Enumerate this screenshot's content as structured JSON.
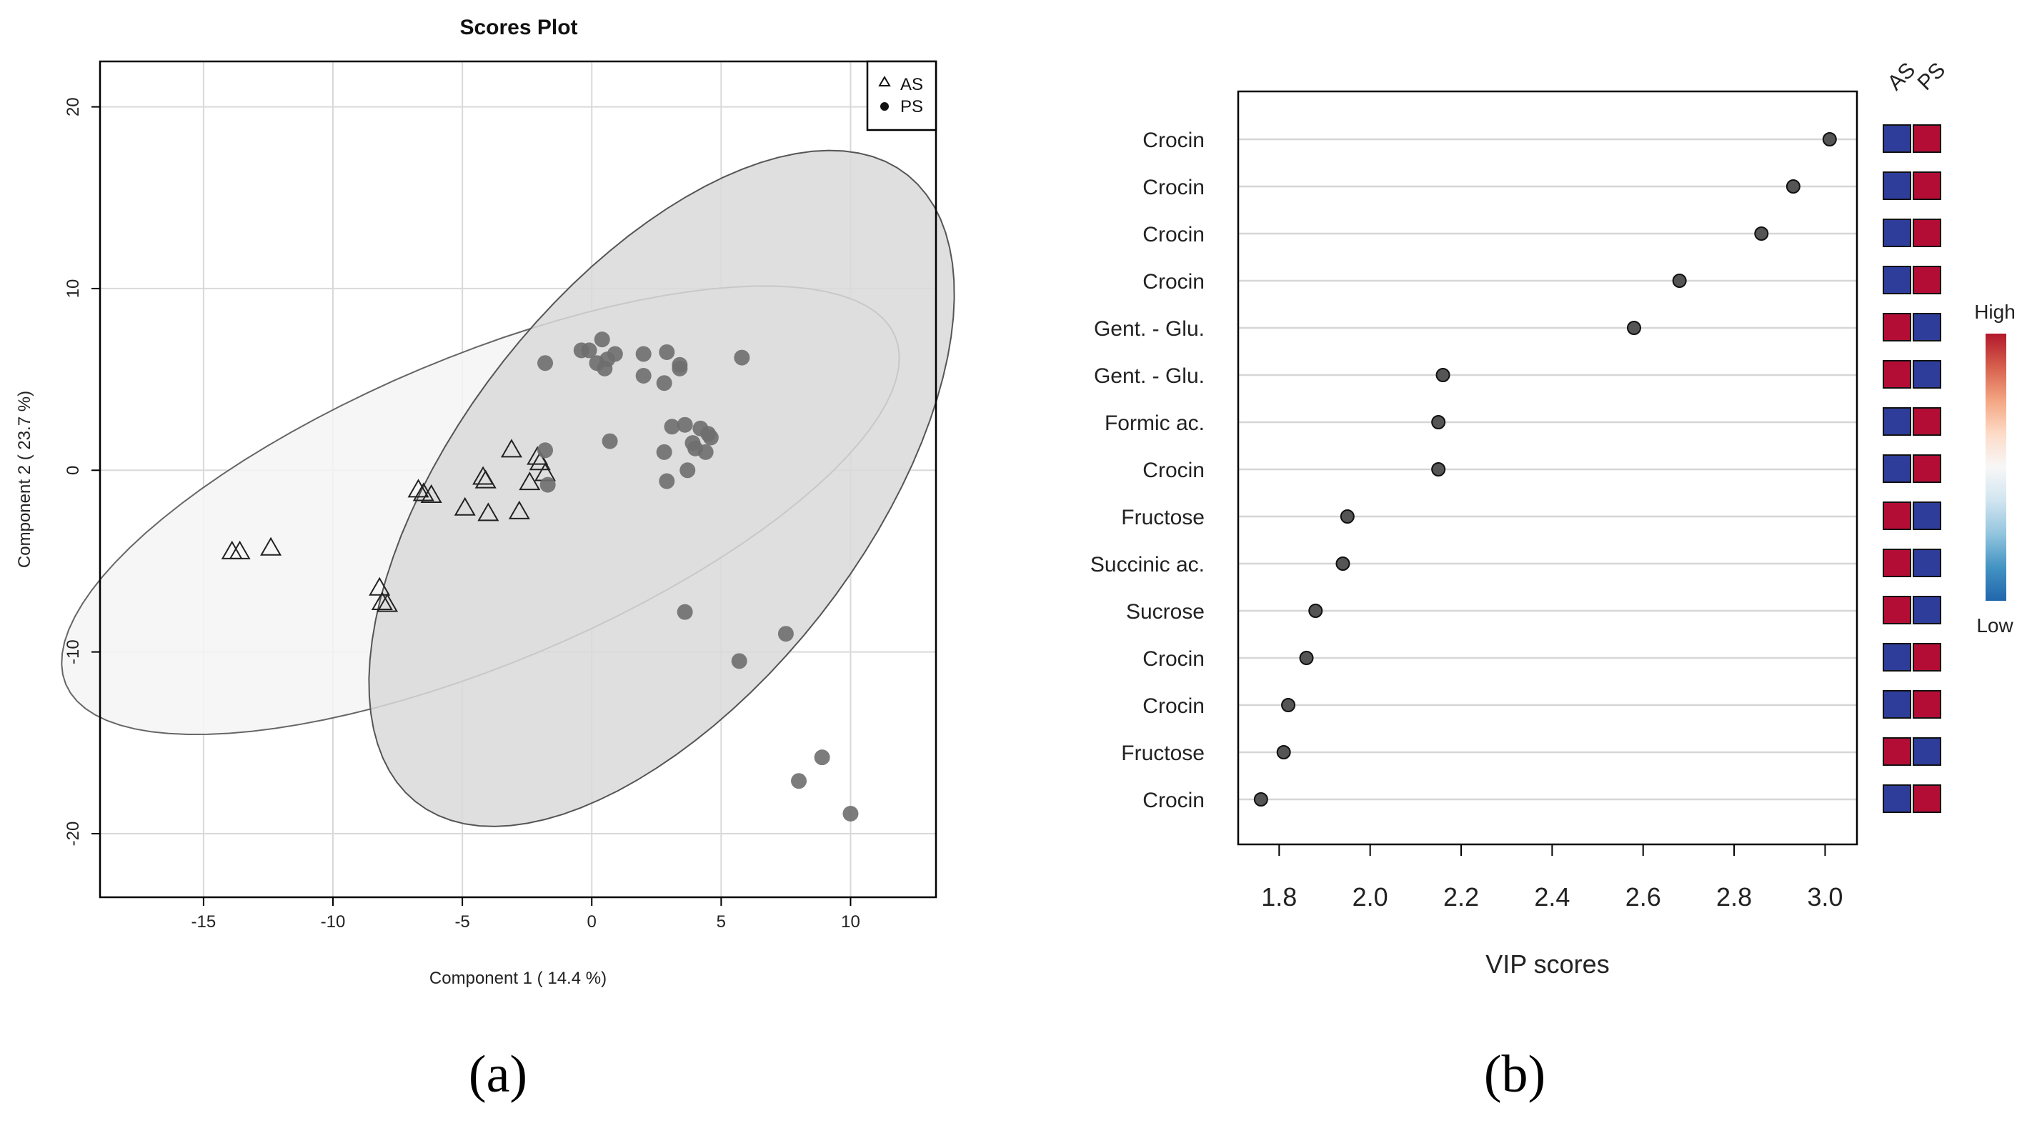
{
  "panels": {
    "a_label": "(a)",
    "b_label": "(b)"
  },
  "chart_data": [
    {
      "type": "scatter",
      "title": "Scores Plot",
      "xlabel": "Component 1 ( 14.4 %)",
      "ylabel": "Component 2 ( 23.7 %)",
      "xlim": [
        -19,
        13.3
      ],
      "ylim": [
        -23.5,
        22.5
      ],
      "xticks": [
        -15,
        -10,
        -5,
        0,
        5,
        10
      ],
      "yticks": [
        -20,
        -10,
        0,
        10,
        20
      ],
      "legend": {
        "position": "top-right",
        "entries": [
          "AS",
          "PS"
        ]
      },
      "ellipses": [
        {
          "group": "AS",
          "center": [
            -4.3,
            -2.2
          ],
          "semi_major": 18.8,
          "semi_minor": 7.8,
          "angle_deg": 34,
          "fill": "#f5f5f5",
          "stroke": "#666666"
        },
        {
          "group": "PS",
          "center": [
            2.7,
            -1.0
          ],
          "semi_major": 20.0,
          "semi_minor": 8.6,
          "angle_deg": 66,
          "fill": "#d9d9d9",
          "stroke": "#555555"
        }
      ],
      "series": [
        {
          "name": "AS",
          "marker": "triangle-open",
          "points": [
            [
              -13.9,
              -4.5
            ],
            [
              -13.6,
              -4.5
            ],
            [
              -12.4,
              -4.3
            ],
            [
              -8.2,
              -6.5
            ],
            [
              -8.1,
              -7.3
            ],
            [
              -7.9,
              -7.4
            ],
            [
              -6.7,
              -1.1
            ],
            [
              -6.5,
              -1.3
            ],
            [
              -6.2,
              -1.4
            ],
            [
              -4.9,
              -2.1
            ],
            [
              -4.2,
              -0.4
            ],
            [
              -4.1,
              -0.6
            ],
            [
              -4.0,
              -2.4
            ],
            [
              -3.1,
              1.1
            ],
            [
              -2.8,
              -2.3
            ],
            [
              -2.4,
              -0.7
            ],
            [
              -2.1,
              0.7
            ],
            [
              -2.0,
              0.4
            ],
            [
              -1.8,
              -0.2
            ]
          ]
        },
        {
          "name": "PS",
          "marker": "circle-filled",
          "points": [
            [
              -1.8,
              5.9
            ],
            [
              -0.4,
              6.6
            ],
            [
              -0.1,
              6.6
            ],
            [
              0.2,
              5.9
            ],
            [
              0.4,
              7.2
            ],
            [
              0.5,
              5.6
            ],
            [
              0.6,
              6.1
            ],
            [
              0.9,
              6.4
            ],
            [
              2.0,
              6.4
            ],
            [
              2.0,
              5.2
            ],
            [
              2.8,
              4.8
            ],
            [
              2.9,
              6.5
            ],
            [
              3.4,
              5.8
            ],
            [
              3.4,
              5.6
            ],
            [
              5.8,
              6.2
            ],
            [
              -1.8,
              1.1
            ],
            [
              -1.7,
              -0.8
            ],
            [
              0.7,
              1.6
            ],
            [
              2.8,
              1.0
            ],
            [
              2.9,
              -0.6
            ],
            [
              3.1,
              2.4
            ],
            [
              3.6,
              2.5
            ],
            [
              3.7,
              0.0
            ],
            [
              3.9,
              1.5
            ],
            [
              4.0,
              1.2
            ],
            [
              4.2,
              2.3
            ],
            [
              4.4,
              1.0
            ],
            [
              4.5,
              2.0
            ],
            [
              4.6,
              1.8
            ],
            [
              3.6,
              -7.8
            ],
            [
              5.7,
              -10.5
            ],
            [
              7.5,
              -9.0
            ],
            [
              8.0,
              -17.1
            ],
            [
              8.9,
              -15.8
            ],
            [
              10.0,
              -18.9
            ]
          ]
        }
      ]
    },
    {
      "type": "dot",
      "xlabel": "VIP scores",
      "xlim": [
        1.71,
        3.07
      ],
      "xticks": [
        "1.8",
        "2.0",
        "2.2",
        "2.4",
        "2.6",
        "2.8",
        "3.0"
      ],
      "categories": [
        "Crocin",
        "Crocin",
        "Crocin",
        "Crocin",
        "Gent. - Glu.",
        "Gent. - Glu.",
        "Formic ac.",
        "Crocin",
        "Fructose",
        "Succinic ac.",
        "Sucrose",
        "Crocin",
        "Crocin",
        "Fructose",
        "Crocin"
      ],
      "values": [
        3.01,
        2.93,
        2.86,
        2.68,
        2.58,
        2.16,
        2.15,
        2.15,
        1.95,
        1.94,
        1.88,
        1.86,
        1.82,
        1.81,
        1.76
      ],
      "heatmap": {
        "columns": [
          "AS",
          "PS"
        ],
        "cells": [
          [
            "low",
            "high"
          ],
          [
            "low",
            "high"
          ],
          [
            "low",
            "high"
          ],
          [
            "low",
            "high"
          ],
          [
            "high",
            "low"
          ],
          [
            "high",
            "low"
          ],
          [
            "low",
            "high"
          ],
          [
            "low",
            "high"
          ],
          [
            "high",
            "low"
          ],
          [
            "high",
            "low"
          ],
          [
            "high",
            "low"
          ],
          [
            "low",
            "high"
          ],
          [
            "low",
            "high"
          ],
          [
            "high",
            "low"
          ],
          [
            "low",
            "high"
          ]
        ],
        "colors": {
          "high": "#b30d36",
          "low": "#2e3d9a"
        },
        "scale_labels": {
          "top": "High",
          "bottom": "Low"
        },
        "scale_colors": [
          "#b2182b",
          "#d6604d",
          "#f4a582",
          "#fddbc7",
          "#f7f7f7",
          "#d1e5f0",
          "#92c5de",
          "#4393c3",
          "#2166ac"
        ]
      }
    }
  ]
}
